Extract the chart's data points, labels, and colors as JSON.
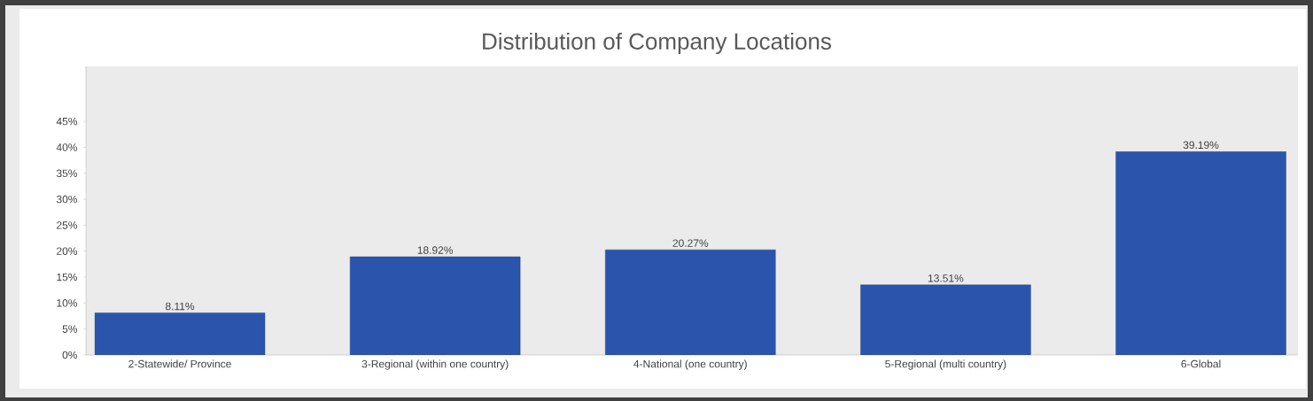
{
  "chart_data": {
    "type": "bar",
    "title": "Distribution of Company Locations",
    "categories": [
      "2-Statewide/ Province",
      "3-Regional (within one country)",
      "4-National (one country)",
      "5-Regional (multi country)",
      "6-Global"
    ],
    "values": [
      8.11,
      18.92,
      20.27,
      13.51,
      39.19
    ],
    "value_labels": [
      "8.11%",
      "18.92%",
      "20.27%",
      "13.51%",
      "39.19%"
    ],
    "color": "#2b55ad",
    "ylim": [
      0,
      55.6
    ],
    "yticks": [
      {
        "value": 0,
        "label": "0%"
      },
      {
        "value": 5,
        "label": "5%"
      },
      {
        "value": 10,
        "label": "10%"
      },
      {
        "value": 15,
        "label": "15%"
      },
      {
        "value": 20,
        "label": "20%"
      },
      {
        "value": 25,
        "label": "25%"
      },
      {
        "value": 30,
        "label": "30%"
      },
      {
        "value": 35,
        "label": "35%"
      },
      {
        "value": 40,
        "label": "40%"
      },
      {
        "value": 45,
        "label": "45%"
      }
    ],
    "grid": false
  }
}
